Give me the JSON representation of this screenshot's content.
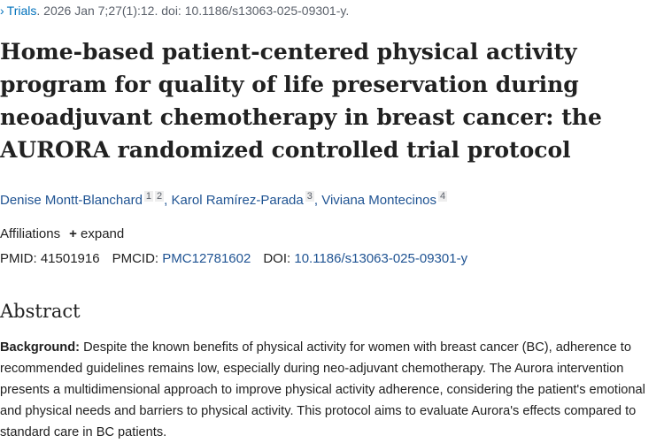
{
  "citation": {
    "journal": "Trials",
    "details": ". 2026 Jan 7;27(1):12. doi: 10.1186/s13063-025-09301-y."
  },
  "title": "Home-based patient-centered physical activity program for quality of life preservation during neoadjuvant chemotherapy in breast cancer: the AURORA randomized controlled trial protocol",
  "authors": [
    {
      "name": "Denise Montt-Blanchard",
      "affiliations": [
        "1",
        "2"
      ],
      "separator": ","
    },
    {
      "name": "Karol Ramírez-Parada",
      "affiliations": [
        "3"
      ],
      "separator": ","
    },
    {
      "name": "Viviana Montecinos",
      "affiliations": [
        "4"
      ]
    }
  ],
  "affiliations": {
    "label": "Affiliations",
    "toggle": "expand"
  },
  "identifiers": [
    {
      "label": "PMID:",
      "value": "41501916"
    },
    {
      "label": "PMCID:",
      "value": "PMC12781602"
    },
    {
      "label": "DOI:",
      "value": "10.1186/s13063-025-09301-y"
    }
  ],
  "abstract": {
    "heading": "Abstract",
    "sections": [
      {
        "label": "Background:",
        "text": "Despite the known benefits of physical activity for women with breast cancer (BC), adherence to recommended guidelines remains low, especially during neo-adjuvant chemotherapy. The Aurora intervention presents a multidimensional approach to improve physical activity adherence, considering the patient's emotional and physical needs and barriers to physical activity. This protocol aims to evaluate Aurora's effects compared to standard care in BC patients."
      }
    ]
  }
}
